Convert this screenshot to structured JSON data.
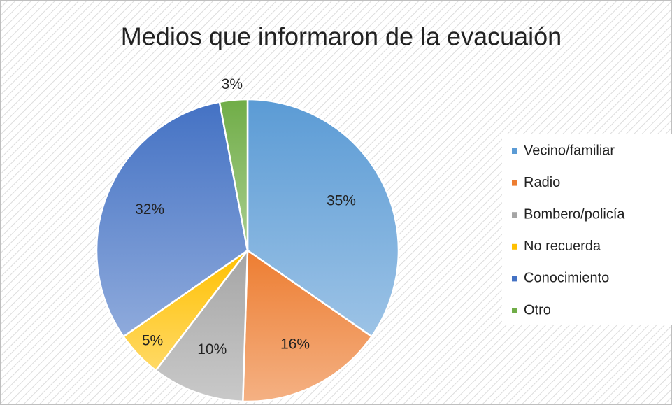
{
  "chart_data": {
    "type": "pie",
    "title": "Medios que informaron de la evacuaión",
    "categories": [
      "Vecino/familiar",
      "Radio",
      "Bombero/policía",
      "No recuerda",
      "Conocimiento",
      "Otro"
    ],
    "values": [
      35,
      16,
      10,
      5,
      32,
      3
    ],
    "value_labels": [
      "35%",
      "16%",
      "10%",
      "5%",
      "32%",
      "3%"
    ],
    "colors": [
      "#5b9bd5",
      "#ed7d31",
      "#a5a5a5",
      "#ffc000",
      "#4472c4",
      "#70ad47"
    ],
    "legend": "right"
  }
}
